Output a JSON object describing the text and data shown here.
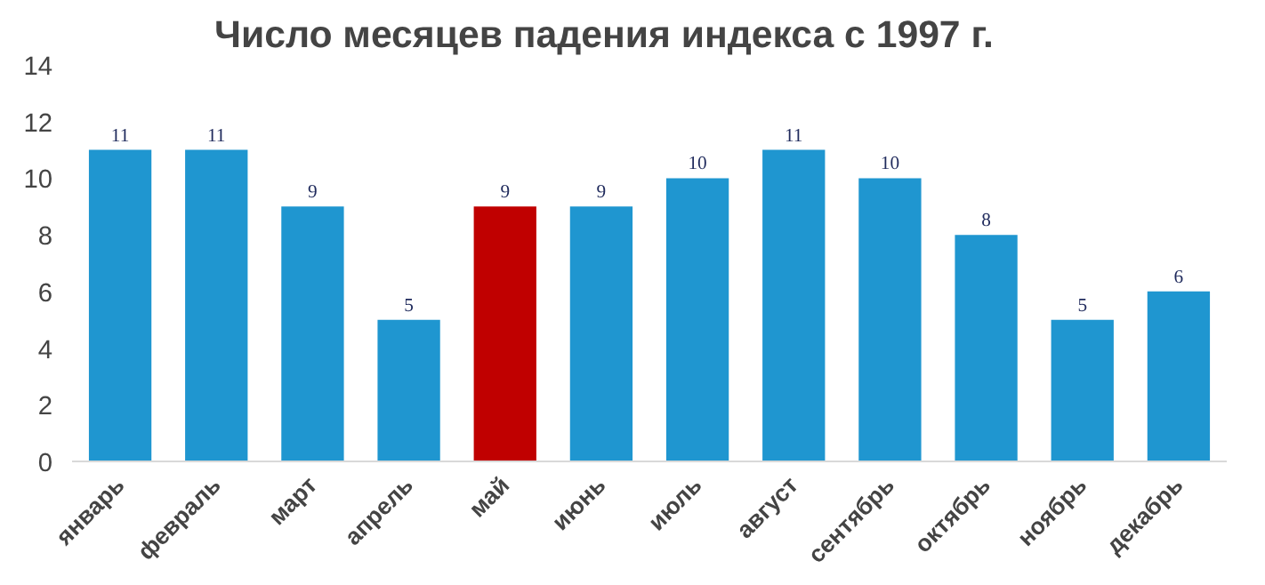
{
  "chart_data": {
    "type": "bar",
    "title": "Число месяцев падения индекса с 1997 г.",
    "categories": [
      "январь",
      "февраль",
      "март",
      "апрель",
      "май",
      "июнь",
      "июль",
      "август",
      "сентябрь",
      "октябрь",
      "ноябрь",
      "декабрь"
    ],
    "values": [
      11,
      11,
      9,
      5,
      9,
      9,
      10,
      11,
      10,
      8,
      5,
      6
    ],
    "colors": [
      "#1f96d0",
      "#1f96d0",
      "#1f96d0",
      "#1f96d0",
      "#c00000",
      "#1f96d0",
      "#1f96d0",
      "#1f96d0",
      "#1f96d0",
      "#1f96d0",
      "#1f96d0",
      "#1f96d0"
    ],
    "ylim": [
      0,
      14
    ],
    "yticks": [
      0,
      2,
      4,
      6,
      8,
      10,
      12,
      14
    ],
    "data_labels": true
  }
}
